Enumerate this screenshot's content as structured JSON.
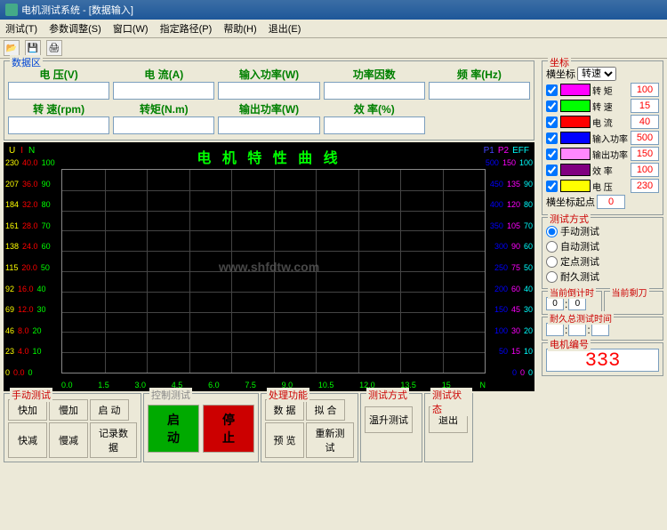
{
  "window": {
    "title": "电机测试系统 - [数据输入]"
  },
  "menu": {
    "m1": "测试(T)",
    "m2": "参数调整(S)",
    "m3": "窗口(W)",
    "m4": "指定路径(P)",
    "m5": "帮助(H)",
    "m6": "退出(E)"
  },
  "data_area": {
    "legend": "数据区",
    "voltage": "电 压(V)",
    "current": "电 流(A)",
    "pin": "输入功率(W)",
    "pf": "功率因数",
    "freq": "频 率(Hz)",
    "speed": "转 速(rpm)",
    "torque": "转矩(N.m)",
    "pout": "输出功率(W)",
    "eff": "效 率(%)"
  },
  "chart": {
    "title": "电 机 特 性 曲 线",
    "hdr_l": {
      "u": "U",
      "i": "I",
      "n": "N"
    },
    "hdr_r": {
      "p1": "P1",
      "p2": "P2",
      "eff": "EFF"
    },
    "colors": {
      "u": "#ff0",
      "i": "#f00",
      "n": "#0f0",
      "p1": "#00f",
      "p2": "#f0f",
      "eff": "#0ff",
      "x": "#0f0"
    },
    "yleft": [
      [
        "230",
        "40.0",
        "100"
      ],
      [
        "207",
        "36.0",
        "90"
      ],
      [
        "184",
        "32.0",
        "80"
      ],
      [
        "161",
        "28.0",
        "70"
      ],
      [
        "138",
        "24.0",
        "60"
      ],
      [
        "115",
        "20.0",
        "50"
      ],
      [
        "92",
        "16.0",
        "40"
      ],
      [
        "69",
        "12.0",
        "30"
      ],
      [
        "46",
        "8.0",
        "20"
      ],
      [
        "23",
        "4.0",
        "10"
      ],
      [
        "0",
        "0.0",
        "0"
      ]
    ],
    "yright": [
      [
        "500",
        "150",
        "100"
      ],
      [
        "450",
        "135",
        "90"
      ],
      [
        "400",
        "120",
        "80"
      ],
      [
        "350",
        "105",
        "70"
      ],
      [
        "300",
        "90",
        "60"
      ],
      [
        "250",
        "75",
        "50"
      ],
      [
        "200",
        "60",
        "40"
      ],
      [
        "150",
        "45",
        "30"
      ],
      [
        "100",
        "30",
        "20"
      ],
      [
        "50",
        "15",
        "10"
      ],
      [
        "0",
        "0",
        "0"
      ]
    ],
    "x": [
      "0.0",
      "1.5",
      "3.0",
      "4.5",
      "6.0",
      "7.5",
      "9.0",
      "10.5",
      "12.0",
      "13.5",
      "15"
    ],
    "x_unit": "N",
    "watermark": "www.shfdtw.com"
  },
  "manual": {
    "legend": "手动测试",
    "quick_add": "快加",
    "slow_add": "慢加",
    "enable": "启 动",
    "quick_dec": "快减",
    "slow_dec": "慢减",
    "record": "记录数据"
  },
  "control": {
    "legend": "控制测试",
    "start": "启  动",
    "stop": "停  止"
  },
  "proc": {
    "legend": "处理功能",
    "data": "数 据",
    "fit": "拟 合",
    "preview": "预 览",
    "retest": "重新测试"
  },
  "mode": {
    "legend": "测试方式",
    "temp": "温升测试"
  },
  "state": {
    "legend": "测试状态",
    "exit": "退出"
  },
  "coord": {
    "legend": "坐标",
    "x_label": "横坐标",
    "x_sel": "转速",
    "rows": [
      {
        "label": "转  矩",
        "color": "#f0f",
        "val": "100"
      },
      {
        "label": "转  速",
        "color": "#0f0",
        "val": "15"
      },
      {
        "label": "电  流",
        "color": "#f00",
        "val": "40"
      },
      {
        "label": "输入功率",
        "color": "#00f",
        "val": "500"
      },
      {
        "label": "输出功率",
        "color": "#f8f",
        "val": "150"
      },
      {
        "label": "效  率",
        "color": "#800080",
        "val": "100"
      },
      {
        "label": "电  压",
        "color": "#ff0",
        "val": "230"
      }
    ],
    "origin": "横坐标起点",
    "origin_val": "0"
  },
  "test_mode": {
    "legend": "测试方式",
    "r1": "手动测试",
    "r2": "自动测试",
    "r3": "定点测试",
    "r4": "耐久测试"
  },
  "timer": {
    "legend": "当前倒计时",
    "h": "0",
    "m": "0"
  },
  "knife": {
    "legend": "当前剩刀"
  },
  "endur": {
    "legend": "耐久总测试时间",
    "sep1": ":",
    "sep2": ":"
  },
  "motor_id": {
    "legend": "电机编号",
    "val": "333"
  }
}
